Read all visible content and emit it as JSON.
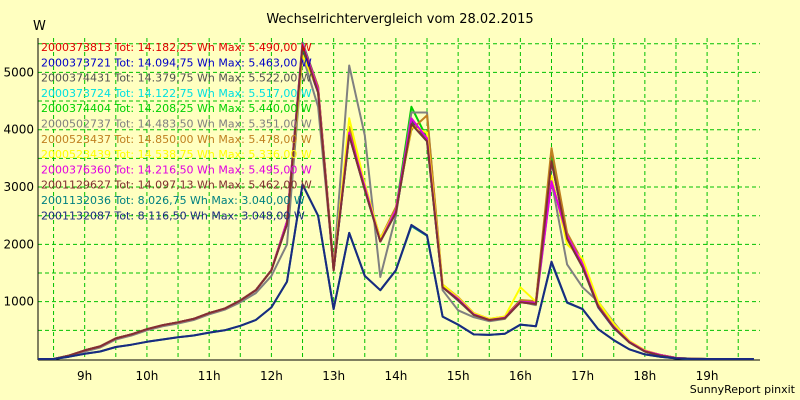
{
  "chart_data": {
    "type": "line",
    "title": "Wechselrichtervergleich vom 28.02.2015",
    "ylabel": "W",
    "footer": "SunnyReport pinxit",
    "xlim": [
      8.25,
      19.85
    ],
    "ylim": [
      0,
      5600
    ],
    "x_ticks": [
      {
        "value": 9,
        "label": "9h"
      },
      {
        "value": 10,
        "label": "10h"
      },
      {
        "value": 11,
        "label": "11h"
      },
      {
        "value": 12,
        "label": "12h"
      },
      {
        "value": 13,
        "label": "13h"
      },
      {
        "value": 14,
        "label": "14h"
      },
      {
        "value": 15,
        "label": "15h"
      },
      {
        "value": 16,
        "label": "16h"
      },
      {
        "value": 17,
        "label": "17h"
      },
      {
        "value": 18,
        "label": "18h"
      },
      {
        "value": 19,
        "label": "19h"
      }
    ],
    "y_ticks": [
      {
        "value": 1000,
        "label": "1000"
      },
      {
        "value": 2000,
        "label": "2000"
      },
      {
        "value": 3000,
        "label": "3000"
      },
      {
        "value": 4000,
        "label": "4000"
      },
      {
        "value": 5000,
        "label": "5000"
      }
    ],
    "x_gridlines": [
      8.5,
      9.0,
      9.5,
      10.0,
      10.5,
      11.0,
      11.5,
      12.0,
      12.5,
      13.0,
      13.5,
      14.0,
      14.5,
      15.0,
      15.5,
      16.0,
      16.5,
      17.0,
      17.5,
      18.0,
      18.5,
      19.0,
      19.5
    ],
    "y_gridlines": [
      500,
      1000,
      1500,
      2000,
      2500,
      3000,
      3500,
      4000,
      4500,
      5000,
      5500
    ],
    "grid": true,
    "legend_position": "top-left",
    "x": [
      8.25,
      8.5,
      8.75,
      9.0,
      9.25,
      9.5,
      9.75,
      10.0,
      10.25,
      10.5,
      10.75,
      11.0,
      11.25,
      11.5,
      11.75,
      12.0,
      12.25,
      12.5,
      12.75,
      13.0,
      13.25,
      13.5,
      13.75,
      14.0,
      14.25,
      14.5,
      14.75,
      15.0,
      15.25,
      15.5,
      15.75,
      16.0,
      16.25,
      16.5,
      16.75,
      17.0,
      17.25,
      17.5,
      17.75,
      18.0,
      18.25,
      18.5,
      18.75,
      19.0,
      19.25,
      19.5,
      19.75
    ],
    "series": [
      {
        "name": "2000373813 Tot: 14.182,25 Wh Max: 5.490,00 W",
        "color": "#e00000",
        "values": [
          0,
          0,
          60,
          150,
          220,
          360,
          430,
          520,
          590,
          640,
          700,
          800,
          880,
          1020,
          1200,
          1550,
          2400,
          5440,
          4700,
          1550,
          3950,
          3000,
          2050,
          2600,
          4150,
          3850,
          1250,
          1050,
          780,
          680,
          720,
          1000,
          980,
          3500,
          2150,
          1650,
          920,
          560,
          300,
          140,
          70,
          20,
          5,
          0,
          0,
          0,
          0
        ]
      },
      {
        "name": "2000373721 Tot: 14.094,75 Wh Max: 5.463,00 W",
        "color": "#0000c8",
        "values": [
          0,
          0,
          60,
          150,
          220,
          360,
          430,
          520,
          590,
          640,
          700,
          800,
          880,
          1020,
          1200,
          1550,
          2350,
          5400,
          4650,
          1550,
          3900,
          2950,
          2050,
          2550,
          4100,
          3800,
          1250,
          1020,
          770,
          670,
          710,
          990,
          960,
          3450,
          2100,
          1600,
          900,
          540,
          290,
          130,
          60,
          15,
          5,
          0,
          0,
          0,
          0
        ]
      },
      {
        "name": "2000374431 Tot: 14.379,75 Wh Max: 5.522,00 W",
        "color": "#505050",
        "values": [
          0,
          0,
          60,
          150,
          220,
          360,
          430,
          520,
          590,
          640,
          700,
          800,
          880,
          1020,
          1200,
          1550,
          2400,
          5520,
          4750,
          1600,
          4000,
          3000,
          2100,
          2600,
          4150,
          3850,
          1280,
          1050,
          780,
          690,
          730,
          1010,
          990,
          3550,
          2150,
          1650,
          930,
          570,
          300,
          140,
          70,
          20,
          5,
          0,
          0,
          0,
          0
        ]
      },
      {
        "name": "2000373724 Tot: 14.122,75 Wh Max: 5.517,00 W",
        "color": "#00e0e0",
        "values": [
          0,
          0,
          60,
          150,
          220,
          360,
          430,
          520,
          590,
          640,
          700,
          800,
          880,
          1020,
          1200,
          1550,
          2400,
          5500,
          4700,
          1550,
          3950,
          2950,
          2050,
          2550,
          4100,
          3800,
          1250,
          1030,
          770,
          680,
          710,
          1000,
          970,
          3450,
          2100,
          1600,
          910,
          550,
          290,
          130,
          60,
          15,
          5,
          0,
          0,
          0,
          0
        ]
      },
      {
        "name": "2000374404 Tot: 14.208,25 Wh Max: 5.440,00 W",
        "color": "#00d000",
        "values": [
          0,
          0,
          60,
          150,
          220,
          360,
          430,
          520,
          590,
          640,
          700,
          800,
          880,
          1020,
          1200,
          1550,
          2400,
          5420,
          4700,
          1550,
          3950,
          3000,
          2050,
          2600,
          4400,
          3850,
          1260,
          1040,
          780,
          680,
          720,
          1000,
          980,
          3500,
          2150,
          1650,
          920,
          560,
          300,
          140,
          70,
          20,
          5,
          0,
          0,
          0,
          0
        ]
      },
      {
        "name": "2000502737 Tot: 14.483,50 Wh Max: 5.351,00 W",
        "color": "#808080",
        "values": [
          0,
          0,
          50,
          130,
          200,
          340,
          410,
          500,
          570,
          620,
          680,
          780,
          860,
          990,
          1150,
          1450,
          2000,
          5300,
          4400,
          1600,
          5120,
          3900,
          1430,
          2500,
          4300,
          4300,
          1200,
          850,
          730,
          660,
          700,
          1000,
          940,
          3100,
          1650,
          1250,
          1000,
          640,
          300,
          130,
          50,
          10,
          0,
          0,
          0,
          0,
          0
        ]
      },
      {
        "name": "2000523437 Tot: 14.850,00 Wh Max: 5.478,00 W",
        "color": "#c08020",
        "values": [
          0,
          0,
          60,
          150,
          220,
          360,
          430,
          520,
          590,
          640,
          700,
          800,
          880,
          1020,
          1200,
          1550,
          2400,
          5470,
          4750,
          1600,
          4050,
          3050,
          2100,
          2650,
          4000,
          4250,
          1300,
          1080,
          800,
          700,
          740,
          1030,
          1010,
          3680,
          2200,
          1700,
          950,
          580,
          310,
          150,
          70,
          20,
          5,
          0,
          0,
          0,
          0
        ]
      },
      {
        "name": "2000523439 Tot: 14.538,75 Wh Max: 5.336,00 W",
        "color": "#ffff00",
        "values": [
          0,
          0,
          60,
          150,
          220,
          360,
          430,
          520,
          590,
          640,
          700,
          800,
          880,
          1020,
          1200,
          1550,
          2400,
          5300,
          4700,
          1550,
          4200,
          3050,
          2100,
          2600,
          4050,
          3950,
          1300,
          1070,
          800,
          700,
          740,
          1250,
          1000,
          3200,
          2000,
          1750,
          1000,
          620,
          320,
          150,
          70,
          20,
          5,
          0,
          0,
          0,
          0
        ]
      },
      {
        "name": "2000376360 Tot: 14.216,50 Wh Max: 5.495,00 W",
        "color": "#e000e0",
        "values": [
          0,
          0,
          60,
          150,
          220,
          360,
          430,
          520,
          590,
          640,
          700,
          800,
          880,
          1020,
          1200,
          1550,
          2400,
          5490,
          4700,
          1550,
          3950,
          3000,
          2050,
          2600,
          4200,
          3850,
          1250,
          1050,
          780,
          680,
          720,
          1000,
          980,
          3100,
          2150,
          1650,
          920,
          560,
          300,
          140,
          70,
          20,
          5,
          0,
          0,
          0,
          0
        ]
      },
      {
        "name": "2001129627 Tot: 14.097,13 Wh Max: 5.462,00 W",
        "color": "#803030",
        "values": [
          0,
          0,
          60,
          150,
          220,
          360,
          430,
          520,
          590,
          640,
          700,
          800,
          880,
          1020,
          1200,
          1550,
          2350,
          5460,
          4650,
          1550,
          3900,
          2950,
          2050,
          2550,
          4100,
          3800,
          1250,
          1030,
          770,
          680,
          710,
          990,
          960,
          3450,
          2100,
          1600,
          910,
          550,
          290,
          130,
          60,
          15,
          5,
          0,
          0,
          0,
          0
        ]
      },
      {
        "name": "2001132036 Tot: 8.026,75 Wh Max: 3.040,00 W",
        "color": "#008080",
        "values": [
          0,
          0,
          40,
          90,
          130,
          210,
          250,
          300,
          340,
          380,
          410,
          460,
          500,
          580,
          680,
          900,
          1350,
          3040,
          2500,
          870,
          2200,
          1450,
          1200,
          1550,
          2320,
          2150,
          740,
          600,
          430,
          420,
          440,
          600,
          570,
          1680,
          980,
          870,
          520,
          330,
          170,
          80,
          40,
          10,
          0,
          0,
          0,
          0,
          0
        ]
      },
      {
        "name": "2001132087 Tot: 8.116,50 Wh Max: 3.048,00 W",
        "color": "#1a2a80",
        "values": [
          0,
          0,
          40,
          90,
          130,
          210,
          250,
          300,
          340,
          380,
          410,
          460,
          500,
          580,
          680,
          900,
          1350,
          3048,
          2500,
          870,
          2200,
          1450,
          1200,
          1550,
          2340,
          2160,
          740,
          600,
          430,
          420,
          440,
          600,
          570,
          1700,
          990,
          870,
          520,
          330,
          170,
          80,
          40,
          10,
          0,
          0,
          0,
          0,
          0
        ]
      }
    ]
  }
}
